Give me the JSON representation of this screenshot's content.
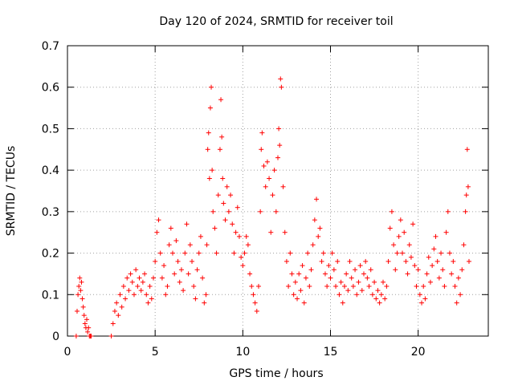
{
  "chart_data": {
    "type": "scatter",
    "title": "Day 120 of 2024, SRMTID for receiver toil",
    "xlabel": "GPS time / hours",
    "ylabel": "SRMTID / TECUs",
    "xlim": [
      0,
      24
    ],
    "ylim": [
      0,
      0.7
    ],
    "xticks": [
      0,
      5,
      10,
      15,
      20
    ],
    "yticks": [
      0,
      0.1,
      0.2,
      0.3,
      0.4,
      0.5,
      0.6,
      0.7
    ],
    "xtick_labels": [
      "0",
      "5",
      "10",
      "15",
      "20"
    ],
    "ytick_labels": [
      "0",
      "0.1",
      "0.2",
      "0.3",
      "0.4",
      "0.5",
      "0.6",
      "0.7"
    ],
    "grid": true,
    "marker": "+",
    "color": "#ff0000",
    "series": [
      {
        "name": "SRMTID",
        "x": [
          0.5,
          0.55,
          0.6,
          0.65,
          0.7,
          0.75,
          0.8,
          0.85,
          0.9,
          0.95,
          1.0,
          1.05,
          1.1,
          1.15,
          1.2,
          1.25,
          1.3,
          1.35,
          2.5,
          2.6,
          2.7,
          2.8,
          2.9,
          3.0,
          3.1,
          3.2,
          3.3,
          3.4,
          3.5,
          3.6,
          3.7,
          3.8,
          3.9,
          4.0,
          4.1,
          4.2,
          4.3,
          4.4,
          4.5,
          4.6,
          4.7,
          4.8,
          4.9,
          5.0,
          5.1,
          5.2,
          5.3,
          5.4,
          5.5,
          5.6,
          5.7,
          5.8,
          5.9,
          6.0,
          6.1,
          6.2,
          6.3,
          6.4,
          6.5,
          6.6,
          6.7,
          6.8,
          6.9,
          7.0,
          7.1,
          7.2,
          7.3,
          7.4,
          7.5,
          7.6,
          7.7,
          7.8,
          7.9,
          7.95,
          8.0,
          8.05,
          8.1,
          8.15,
          8.2,
          8.25,
          8.3,
          8.4,
          8.5,
          8.6,
          8.7,
          8.75,
          8.8,
          8.85,
          8.9,
          9.0,
          9.1,
          9.2,
          9.3,
          9.4,
          9.5,
          9.6,
          9.7,
          9.8,
          9.9,
          10.0,
          10.1,
          10.2,
          10.3,
          10.4,
          10.5,
          10.6,
          10.7,
          10.8,
          10.9,
          11.0,
          11.05,
          11.1,
          11.2,
          11.3,
          11.4,
          11.5,
          11.6,
          11.7,
          11.8,
          11.9,
          12.0,
          12.05,
          12.1,
          12.15,
          12.2,
          12.3,
          12.4,
          12.5,
          12.6,
          12.7,
          12.8,
          12.9,
          13.0,
          13.1,
          13.2,
          13.3,
          13.4,
          13.5,
          13.6,
          13.7,
          13.8,
          13.9,
          14.0,
          14.1,
          14.2,
          14.3,
          14.4,
          14.5,
          14.6,
          14.7,
          14.8,
          14.9,
          15.0,
          15.1,
          15.2,
          15.3,
          15.4,
          15.5,
          15.6,
          15.7,
          15.8,
          15.9,
          16.0,
          16.1,
          16.2,
          16.3,
          16.4,
          16.5,
          16.6,
          16.7,
          16.8,
          16.9,
          17.0,
          17.1,
          17.2,
          17.3,
          17.4,
          17.5,
          17.6,
          17.7,
          17.8,
          17.9,
          18.0,
          18.1,
          18.2,
          18.3,
          18.4,
          18.5,
          18.6,
          18.7,
          18.8,
          18.9,
          19.0,
          19.1,
          19.2,
          19.3,
          19.4,
          19.5,
          19.6,
          19.7,
          19.8,
          19.9,
          20.0,
          20.1,
          20.2,
          20.3,
          20.4,
          20.5,
          20.6,
          20.7,
          20.8,
          20.9,
          21.0,
          21.1,
          21.2,
          21.3,
          21.4,
          21.5,
          21.6,
          21.7,
          21.8,
          21.9,
          22.0,
          22.1,
          22.2,
          22.3,
          22.4,
          22.5,
          22.6,
          22.7,
          22.75,
          22.8,
          22.85,
          22.9
        ],
        "y": [
          0.0,
          0.06,
          0.1,
          0.12,
          0.14,
          0.11,
          0.13,
          0.09,
          0.07,
          0.05,
          0.03,
          0.02,
          0.04,
          0.01,
          0.02,
          0.0,
          0.0,
          0.0,
          0.0,
          0.03,
          0.06,
          0.08,
          0.05,
          0.1,
          0.07,
          0.12,
          0.09,
          0.14,
          0.11,
          0.15,
          0.13,
          0.1,
          0.16,
          0.12,
          0.14,
          0.11,
          0.13,
          0.15,
          0.1,
          0.08,
          0.12,
          0.09,
          0.14,
          0.18,
          0.25,
          0.28,
          0.2,
          0.14,
          0.17,
          0.1,
          0.12,
          0.22,
          0.26,
          0.2,
          0.15,
          0.23,
          0.18,
          0.13,
          0.16,
          0.11,
          0.2,
          0.27,
          0.15,
          0.22,
          0.18,
          0.12,
          0.09,
          0.16,
          0.2,
          0.24,
          0.14,
          0.08,
          0.1,
          0.22,
          0.45,
          0.49,
          0.38,
          0.55,
          0.6,
          0.4,
          0.3,
          0.26,
          0.2,
          0.34,
          0.45,
          0.57,
          0.48,
          0.38,
          0.32,
          0.28,
          0.36,
          0.3,
          0.34,
          0.27,
          0.2,
          0.25,
          0.31,
          0.24,
          0.19,
          0.17,
          0.2,
          0.24,
          0.22,
          0.15,
          0.12,
          0.1,
          0.08,
          0.06,
          0.12,
          0.3,
          0.45,
          0.49,
          0.41,
          0.36,
          0.42,
          0.38,
          0.25,
          0.34,
          0.4,
          0.3,
          0.43,
          0.5,
          0.46,
          0.62,
          0.6,
          0.36,
          0.25,
          0.18,
          0.12,
          0.2,
          0.15,
          0.1,
          0.13,
          0.09,
          0.15,
          0.11,
          0.17,
          0.08,
          0.14,
          0.2,
          0.12,
          0.16,
          0.22,
          0.28,
          0.33,
          0.24,
          0.26,
          0.18,
          0.2,
          0.15,
          0.12,
          0.17,
          0.14,
          0.2,
          0.16,
          0.12,
          0.18,
          0.1,
          0.13,
          0.08,
          0.12,
          0.15,
          0.11,
          0.18,
          0.14,
          0.12,
          0.16,
          0.1,
          0.13,
          0.17,
          0.11,
          0.15,
          0.18,
          0.14,
          0.12,
          0.16,
          0.1,
          0.13,
          0.09,
          0.11,
          0.08,
          0.1,
          0.13,
          0.09,
          0.12,
          0.18,
          0.26,
          0.3,
          0.22,
          0.16,
          0.2,
          0.24,
          0.28,
          0.2,
          0.25,
          0.18,
          0.15,
          0.22,
          0.19,
          0.27,
          0.17,
          0.12,
          0.16,
          0.1,
          0.08,
          0.12,
          0.09,
          0.15,
          0.19,
          0.13,
          0.17,
          0.21,
          0.24,
          0.18,
          0.14,
          0.2,
          0.16,
          0.12,
          0.25,
          0.3,
          0.2,
          0.15,
          0.18,
          0.12,
          0.08,
          0.14,
          0.1,
          0.16,
          0.22,
          0.3,
          0.34,
          0.45,
          0.36,
          0.18
        ]
      }
    ]
  }
}
